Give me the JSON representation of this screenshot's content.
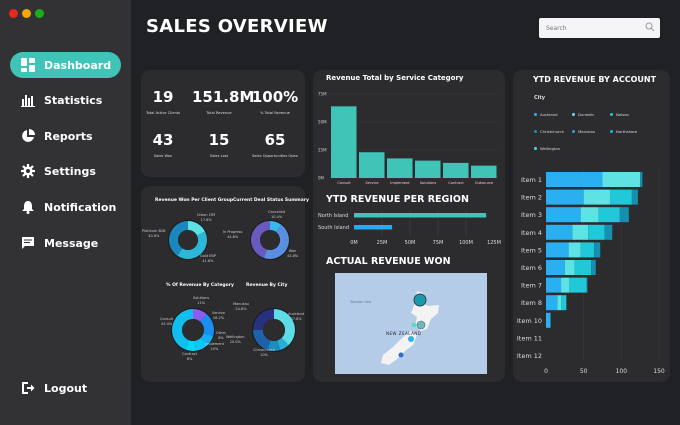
{
  "window": {
    "controls": [
      "close",
      "minimize",
      "maximize"
    ],
    "colors": [
      "#e8271e",
      "#f2a600",
      "#16b11a"
    ]
  },
  "sidebar": {
    "items": [
      {
        "label": "Dashboard",
        "icon": "dashboard-icon",
        "active": true
      },
      {
        "label": "Statistics",
        "icon": "bar-chart-icon"
      },
      {
        "label": "Reports",
        "icon": "pie-chart-icon"
      },
      {
        "label": "Settings",
        "icon": "gear-icon"
      },
      {
        "label": "Notification",
        "icon": "bell-icon"
      },
      {
        "label": "Message",
        "icon": "message-icon"
      }
    ],
    "logout": "Logout"
  },
  "header": {
    "title": "SALES OVERVIEW",
    "search_placeholder": "Search"
  },
  "accent": "#40c4b8",
  "kpis": [
    {
      "value": "19",
      "label": "Total Active Clients"
    },
    {
      "value": "151.8M",
      "label": "Total Revenue"
    },
    {
      "value": "100%",
      "label": "% Total Revenue"
    },
    {
      "value": "43",
      "label": "Sales Won"
    },
    {
      "value": "15",
      "label": "Sales Lost"
    },
    {
      "value": "65",
      "label": "Sales Opportunities Open"
    }
  ],
  "chart_data": [
    {
      "type": "pie",
      "title": "Revenue Won Per Client Group",
      "donut": true,
      "slices": [
        {
          "label": "Urban LTM",
          "value": 17.6,
          "text": "17.6%",
          "color": "#5ce0e6"
        },
        {
          "label": "Gold EBP",
          "value": 41.8,
          "text": "41.8%",
          "color": "#2bb8d8"
        },
        {
          "label": "Platinum B2B",
          "value": 40.6,
          "text": "40.6%",
          "color": "#1a88bc"
        }
      ]
    },
    {
      "type": "pie",
      "title": "Current Deal Status Summary",
      "donut": true,
      "slices": [
        {
          "label": "Cancelled",
          "value": 10.4,
          "text": "10.4%",
          "color": "#38b8f0"
        },
        {
          "label": "Won",
          "value": 44.8,
          "text": "44.8%",
          "color": "#5a8ee0"
        },
        {
          "label": "In Progress",
          "value": 44.8,
          "text": "44.8%",
          "color": "#6a5ac0"
        }
      ]
    },
    {
      "type": "pie",
      "title": "% Of Revenue By Category",
      "donut": true,
      "slices": [
        {
          "label": "Solutions",
          "value": 11,
          "text": "11%",
          "color": "#8a5cf0"
        },
        {
          "label": "Service",
          "value": 18.2,
          "text": "18.2%",
          "color": "#1a8ef0"
        },
        {
          "label": "Other",
          "value": 8,
          "text": "8%",
          "color": "#12aef2"
        },
        {
          "label": "Implement",
          "value": 10,
          "text": "10%",
          "color": "#10c6f2"
        },
        {
          "label": "Contract",
          "value": 8,
          "text": "8%",
          "color": "#00d8fa"
        },
        {
          "label": "Consult",
          "value": 43.4,
          "text": "43.4%",
          "color": "#10bff0"
        }
      ]
    },
    {
      "type": "pie",
      "title": "Revenue By City",
      "donut": true,
      "slices": [
        {
          "label": "Auckland",
          "value": 37.8,
          "text": "37.8%",
          "color": "#5cdce6"
        },
        {
          "label": "",
          "value": 7.4,
          "text": "",
          "color": "#2aaed6"
        },
        {
          "label": "Christchurch",
          "value": 10,
          "text": "10%",
          "color": "#1a8cc0"
        },
        {
          "label": "Wellington",
          "value": 20.0,
          "text": "20.0%",
          "color": "#2060a8"
        },
        {
          "label": "Manukau",
          "value": 24.8,
          "text": "24.8%",
          "color": "#283080"
        }
      ]
    },
    {
      "type": "bar",
      "title": "Revenue Total by Service Category",
      "categories": [
        "Consult",
        "Service",
        "Implement",
        "Solutions",
        "Contract",
        "Outsource"
      ],
      "values": [
        64,
        23,
        17.5,
        15.5,
        13.5,
        11
      ],
      "ylim": [
        0,
        75
      ],
      "yticks": [
        "0M",
        "25M",
        "50M",
        "75M"
      ],
      "ytick_values": [
        0,
        25,
        50,
        75
      ],
      "color": "#40c4b8",
      "grid": true
    },
    {
      "type": "bar",
      "orientation": "horizontal",
      "title": "YTD REVENUE PER REGION",
      "categories": [
        "North Island",
        "South Island"
      ],
      "values": [
        118,
        34
      ],
      "colors": [
        "#40c4b8",
        "#2aa8f0"
      ],
      "xlim": [
        0,
        125
      ],
      "xticks": [
        "0M",
        "25M",
        "50M",
        "75M",
        "100M",
        "125M"
      ],
      "xtick_values": [
        0,
        25,
        50,
        75,
        100,
        125
      ]
    },
    {
      "type": "bar",
      "orientation": "horizontal",
      "stacked": true,
      "title": "YTD REVENUE BY ACCOUNT",
      "legend_title": "City",
      "legend": [
        {
          "name": "Auckland",
          "color": "#2ab0f0"
        },
        {
          "name": "Dunedin",
          "color": "#5ee2e4"
        },
        {
          "name": "Nelson",
          "color": "#20c8d8"
        },
        {
          "name": "Christchurch",
          "color": "#1590b0"
        },
        {
          "name": "Manukau",
          "color": "#2aa0e8"
        },
        {
          "name": "Northshore",
          "color": "#12b8e0"
        },
        {
          "name": "Wellington",
          "color": "#4ad8e8"
        }
      ],
      "categories": [
        "Item 1",
        "Item 2",
        "Item 3",
        "Item 4",
        "Item 5",
        "Item 6",
        "Item 7",
        "Item 8",
        "Item 10",
        "Item 11",
        "Item 12"
      ],
      "series": [
        {
          "name": "Auckland",
          "values": [
            75,
            50,
            46,
            35,
            30,
            25,
            20,
            15,
            6,
            0,
            0
          ]
        },
        {
          "name": "Dunedin",
          "values": [
            50,
            35,
            24,
            21,
            16,
            13,
            11,
            5,
            0,
            0,
            0
          ]
        },
        {
          "name": "Nelson",
          "values": [
            0,
            29,
            28,
            22,
            18,
            22,
            23,
            7,
            0,
            0,
            0
          ]
        },
        {
          "name": "Christchurch",
          "values": [
            3,
            8,
            12,
            10,
            8,
            6,
            1,
            0,
            0,
            0,
            0
          ]
        }
      ],
      "xlim": [
        0,
        150
      ],
      "xticks": [
        "0",
        "50",
        "100",
        "150"
      ],
      "xtick_values": [
        0,
        50,
        100,
        150
      ],
      "grid": true
    }
  ],
  "map": {
    "title": "ACTUAL REVENUE WON",
    "sea_label": "Tasman Sea",
    "country_label": "NEW ZEALAND"
  }
}
